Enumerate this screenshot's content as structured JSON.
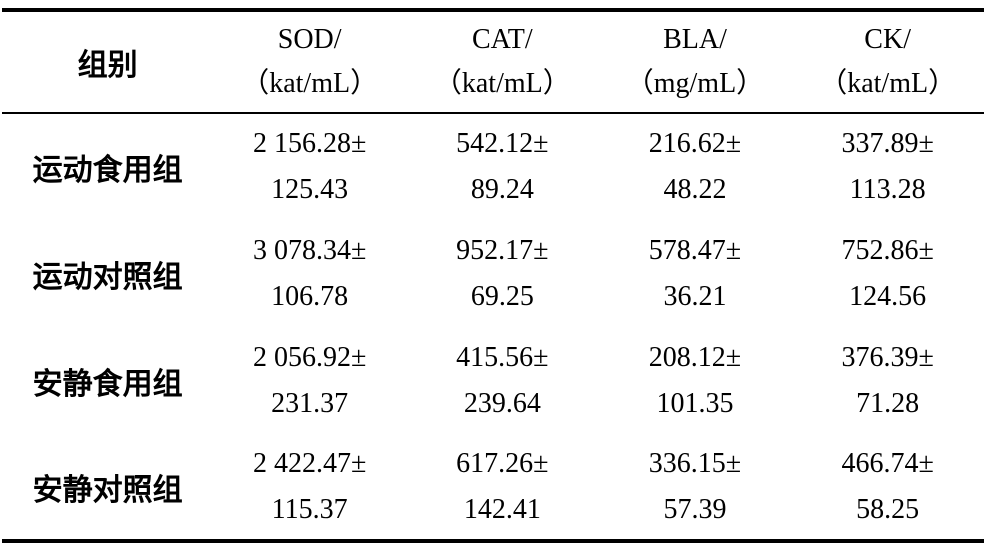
{
  "colors": {
    "background": "#ffffff",
    "text": "#000000",
    "rule": "#000000"
  },
  "table": {
    "header": {
      "group": "组别",
      "columns": [
        {
          "line1": "SOD/",
          "line2": "（kat/mL）"
        },
        {
          "line1": "CAT/",
          "line2": "（kat/mL）"
        },
        {
          "line1": "BLA/",
          "line2": "（mg/mL）"
        },
        {
          "line1": "CK/",
          "line2": "（kat/mL）"
        }
      ]
    },
    "rows": [
      {
        "group": "运动食用组",
        "cells": [
          {
            "line1": "2 156.28±",
            "line2": "125.43"
          },
          {
            "line1": "542.12±",
            "line2": "89.24"
          },
          {
            "line1": "216.62±",
            "line2": "48.22"
          },
          {
            "line1": "337.89±",
            "line2": "113.28"
          }
        ]
      },
      {
        "group": "运动对照组",
        "cells": [
          {
            "line1": "3 078.34±",
            "line2": "106.78"
          },
          {
            "line1": "952.17±",
            "line2": "69.25"
          },
          {
            "line1": "578.47±",
            "line2": "36.21"
          },
          {
            "line1": "752.86±",
            "line2": "124.56"
          }
        ]
      },
      {
        "group": "安静食用组",
        "cells": [
          {
            "line1": "2 056.92±",
            "line2": "231.37"
          },
          {
            "line1": "415.56±",
            "line2": "239.64"
          },
          {
            "line1": "208.12±",
            "line2": "101.35"
          },
          {
            "line1": "376.39±",
            "line2": "71.28"
          }
        ]
      },
      {
        "group": "安静对照组",
        "cells": [
          {
            "line1": "2 422.47±",
            "line2": "115.37"
          },
          {
            "line1": "617.26±",
            "line2": "142.41"
          },
          {
            "line1": "336.15±",
            "line2": "57.39"
          },
          {
            "line1": "466.74±",
            "line2": "58.25"
          }
        ]
      }
    ]
  }
}
